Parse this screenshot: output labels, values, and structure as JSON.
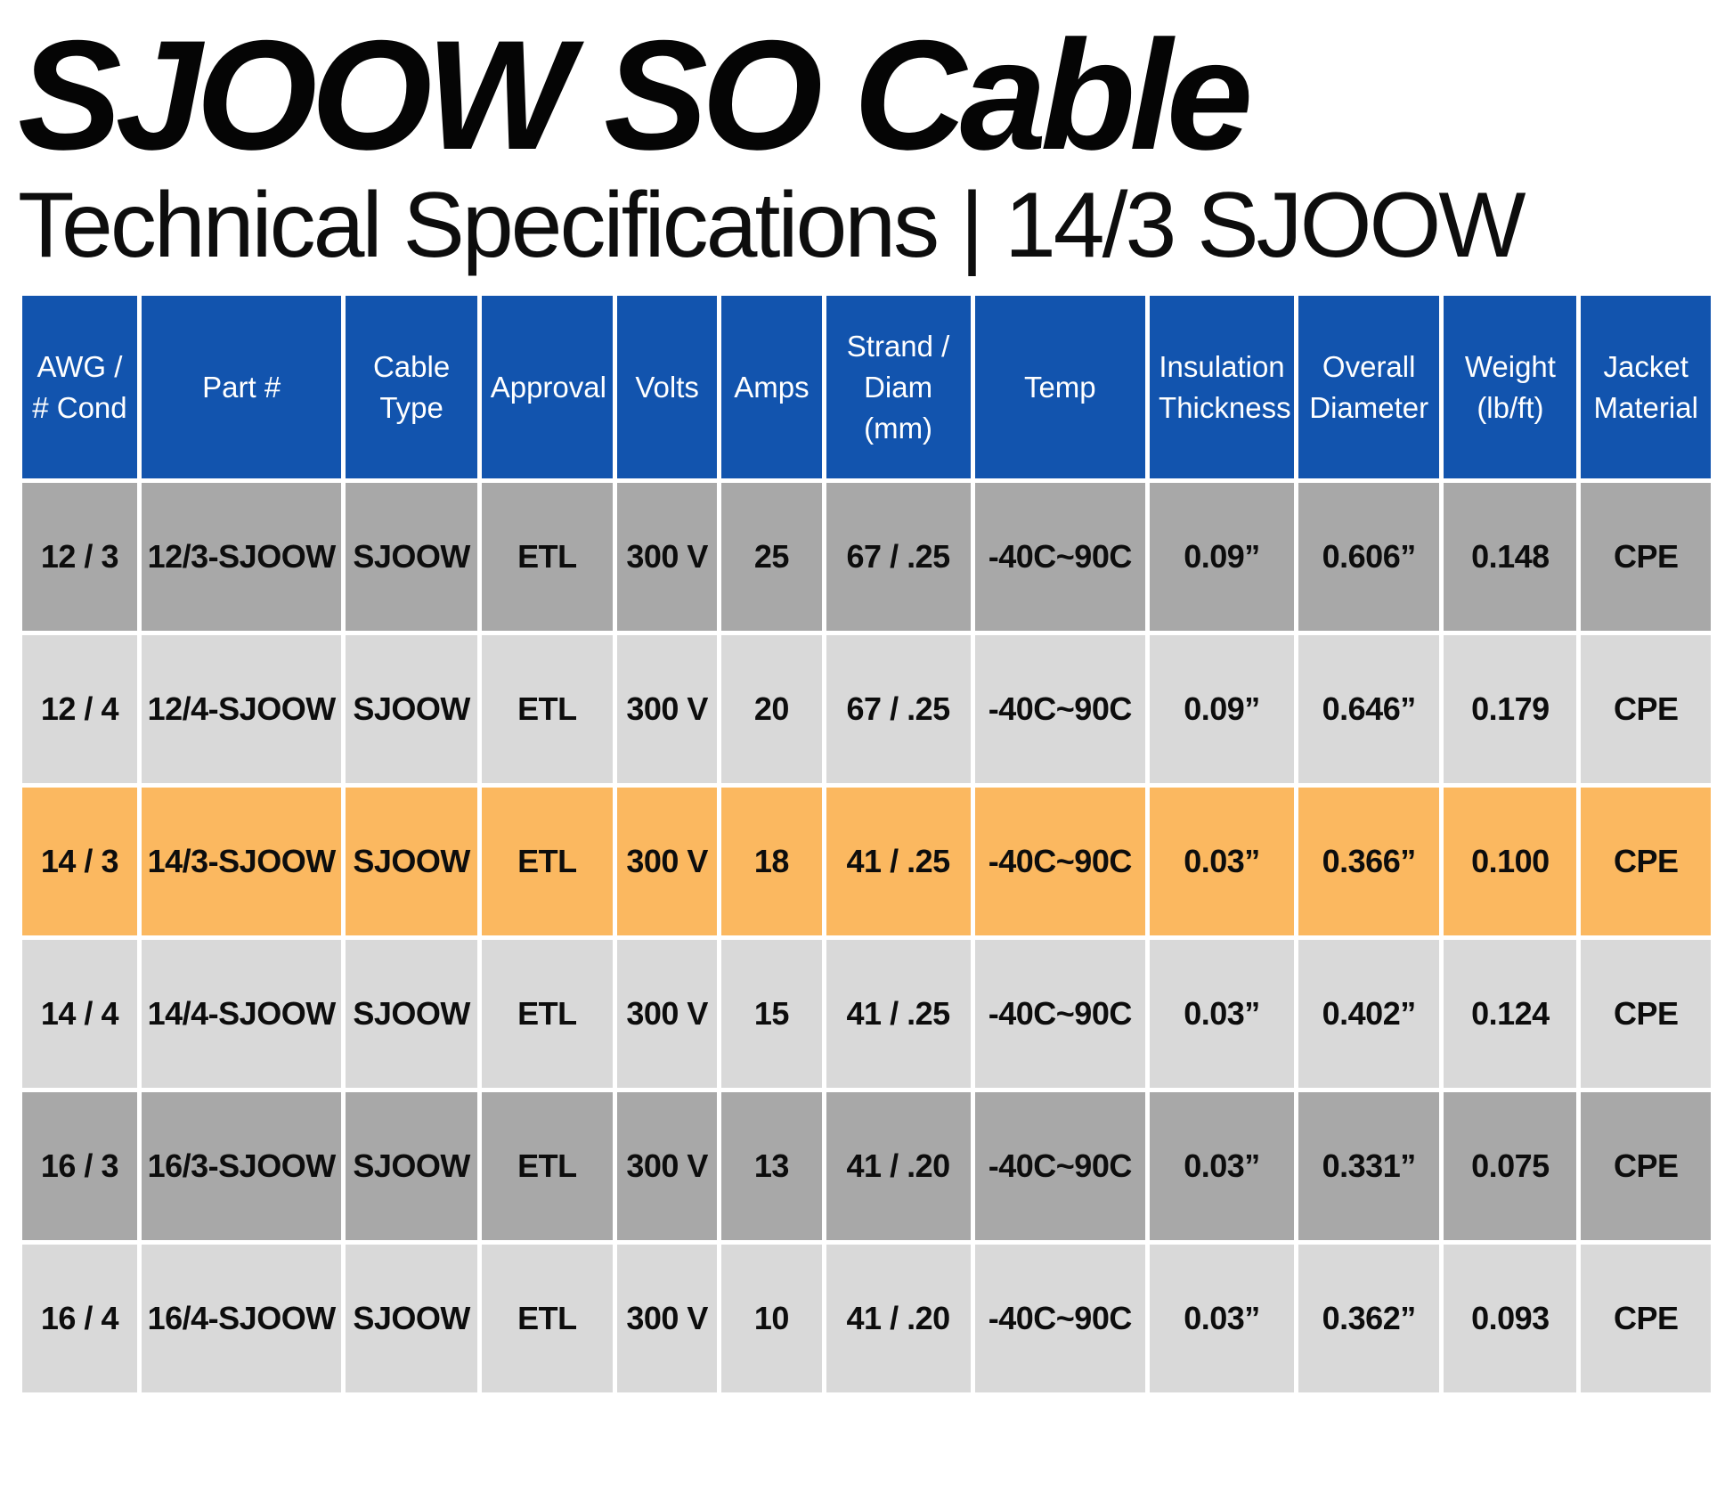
{
  "page": {
    "title": "SJOOW SO Cable",
    "subtitle": "Technical Specifications | 14/3 SJOOW"
  },
  "table": {
    "columns": [
      "AWG / # Cond",
      "Part #",
      "Cable Type",
      "Approval",
      "Volts",
      "Amps",
      "Strand / Diam (mm)",
      "Temp",
      "Insulation Thickness",
      "Overall Diameter",
      "Weight (lb/ft)",
      "Jacket Material"
    ],
    "rows": [
      {
        "shade": "dark",
        "cells": [
          "12 / 3",
          "12/3-SJOOW",
          "SJOOW",
          "ETL",
          "300 V",
          "25",
          "67 / .25",
          "-40C~90C",
          "0.09”",
          "0.606”",
          "0.148",
          "CPE"
        ]
      },
      {
        "shade": "light",
        "cells": [
          "12 / 4",
          "12/4-SJOOW",
          "SJOOW",
          "ETL",
          "300 V",
          "20",
          "67 / .25",
          "-40C~90C",
          "0.09”",
          "0.646”",
          "0.179",
          "CPE"
        ]
      },
      {
        "shade": "highlight",
        "cells": [
          "14 / 3",
          "14/3-SJOOW",
          "SJOOW",
          "ETL",
          "300 V",
          "18",
          "41 / .25",
          "-40C~90C",
          "0.03”",
          "0.366”",
          "0.100",
          "CPE"
        ]
      },
      {
        "shade": "light",
        "cells": [
          "14 / 4",
          "14/4-SJOOW",
          "SJOOW",
          "ETL",
          "300 V",
          "15",
          "41 / .25",
          "-40C~90C",
          "0.03”",
          "0.402”",
          "0.124",
          "CPE"
        ]
      },
      {
        "shade": "dark",
        "cells": [
          "16 / 3",
          "16/3-SJOOW",
          "SJOOW",
          "ETL",
          "300 V",
          "13",
          "41 / .20",
          "-40C~90C",
          "0.03”",
          "0.331”",
          "0.075",
          "CPE"
        ]
      },
      {
        "shade": "light",
        "cells": [
          "16 / 4",
          "16/4-SJOOW",
          "SJOOW",
          "ETL",
          "300 V",
          "10",
          "41 / .20",
          "-40C~90C",
          "0.03”",
          "0.362”",
          "0.093",
          "CPE"
        ]
      }
    ],
    "colors": {
      "header_bg": "#1254AE",
      "header_text": "#FFFFFF",
      "row_dark": "#A8A8A8",
      "row_light": "#D9D9D9",
      "row_highlight": "#FBB860",
      "cell_text": "#0D0D0D"
    }
  }
}
